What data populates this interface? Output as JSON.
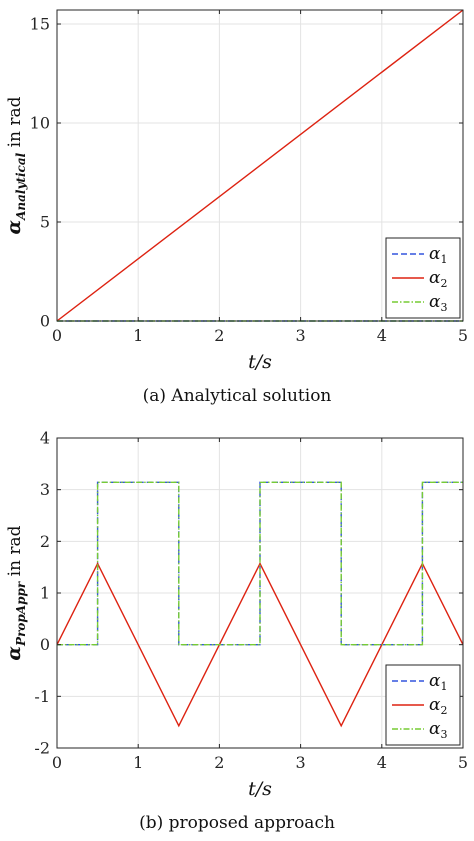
{
  "chart_data": [
    {
      "type": "line",
      "caption": "(a)  Analytical solution",
      "xlabel": "t/s",
      "ylabel_main": "α",
      "ylabel_sub": "Analytical",
      "ylabel_unit": "in rad",
      "xlim": [
        0,
        5
      ],
      "ylim": [
        0,
        15.708
      ],
      "xticks": [
        0,
        1,
        2,
        3,
        4,
        5
      ],
      "yticks": [
        0,
        5,
        10,
        15
      ],
      "grid": true,
      "legend_position": "bottom-right",
      "series": [
        {
          "name": "α1",
          "label_main": "α",
          "label_sub": "1",
          "color": "#3355dd",
          "dash": "6,3",
          "x": [
            0,
            5
          ],
          "y": [
            0,
            0
          ]
        },
        {
          "name": "α2",
          "label_main": "α",
          "label_sub": "2",
          "color": "#dd2211",
          "dash": "",
          "x": [
            0,
            5
          ],
          "y": [
            0,
            15.708
          ]
        },
        {
          "name": "α3",
          "label_main": "α",
          "label_sub": "3",
          "color": "#77cc33",
          "dash": "6,2,1.5,2",
          "x": [
            0,
            5
          ],
          "y": [
            0,
            0
          ]
        }
      ]
    },
    {
      "type": "line",
      "caption": "(b)  proposed approach",
      "xlabel": "t/s",
      "ylabel_main": "α",
      "ylabel_sub": "PropAppr",
      "ylabel_unit": "in rad",
      "xlim": [
        0,
        5
      ],
      "ylim": [
        -2,
        4
      ],
      "xticks": [
        0,
        1,
        2,
        3,
        4,
        5
      ],
      "yticks": [
        -2,
        -1,
        0,
        1,
        2,
        3,
        4
      ],
      "grid": true,
      "legend_position": "bottom-right",
      "series": [
        {
          "name": "α1",
          "label_main": "α",
          "label_sub": "1",
          "color": "#3355dd",
          "dash": "6,3",
          "x": [
            0,
            0.5,
            0.5,
            1.5,
            1.5,
            2.5,
            2.5,
            3.5,
            3.5,
            4.5,
            4.5,
            5
          ],
          "y": [
            0,
            0,
            3.1416,
            3.1416,
            0,
            0,
            3.1416,
            3.1416,
            0,
            0,
            3.1416,
            3.1416
          ]
        },
        {
          "name": "α2",
          "label_main": "α",
          "label_sub": "2",
          "color": "#dd2211",
          "dash": "",
          "x": [
            0,
            0.5,
            1.5,
            2.5,
            3.5,
            4.5,
            5
          ],
          "y": [
            0,
            1.5708,
            -1.5708,
            1.5708,
            -1.5708,
            1.5708,
            0
          ]
        },
        {
          "name": "α3",
          "label_main": "α",
          "label_sub": "3",
          "color": "#77cc33",
          "dash": "6,2,1.5,2",
          "x": [
            0,
            0.5,
            0.5,
            1.5,
            1.5,
            2.5,
            2.5,
            3.5,
            3.5,
            4.5,
            4.5,
            5
          ],
          "y": [
            0,
            0,
            3.1416,
            3.1416,
            0,
            0,
            3.1416,
            3.1416,
            0,
            0,
            3.1416,
            3.1416
          ]
        }
      ]
    }
  ]
}
